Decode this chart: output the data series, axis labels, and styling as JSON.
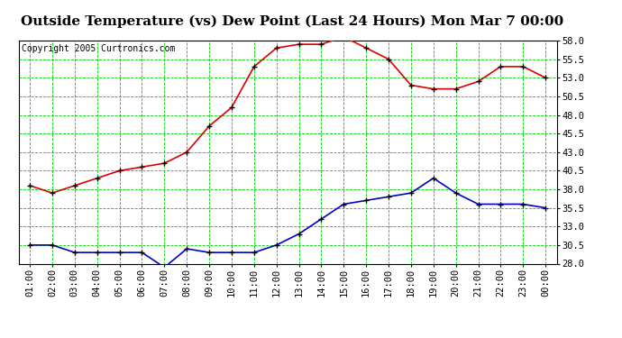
{
  "title": "Outside Temperature (vs) Dew Point (Last 24 Hours) Mon Mar 7 00:00",
  "copyright": "Copyright 2005 Curtronics.com",
  "x_labels": [
    "01:00",
    "02:00",
    "03:00",
    "04:00",
    "05:00",
    "06:00",
    "07:00",
    "08:00",
    "09:00",
    "10:00",
    "11:00",
    "12:00",
    "13:00",
    "14:00",
    "15:00",
    "16:00",
    "17:00",
    "18:00",
    "19:00",
    "20:00",
    "21:00",
    "22:00",
    "23:00",
    "00:00"
  ],
  "temp_data": [
    38.5,
    37.5,
    38.5,
    39.5,
    40.5,
    41.0,
    41.5,
    43.0,
    46.5,
    49.0,
    54.5,
    57.0,
    57.5,
    57.5,
    58.5,
    57.0,
    55.5,
    52.0,
    51.5,
    51.5,
    52.5,
    54.5,
    54.5,
    53.0
  ],
  "dew_data": [
    30.5,
    30.5,
    29.5,
    29.5,
    29.5,
    29.5,
    27.5,
    30.0,
    29.5,
    29.5,
    29.5,
    30.5,
    32.0,
    34.0,
    36.0,
    36.5,
    37.0,
    37.5,
    39.5,
    37.5,
    36.0,
    36.0,
    36.0,
    35.5
  ],
  "ylim": [
    28.0,
    58.0
  ],
  "yticks": [
    28.0,
    30.5,
    33.0,
    35.5,
    38.0,
    40.5,
    43.0,
    45.5,
    48.0,
    50.5,
    53.0,
    55.5,
    58.0
  ],
  "bg_color": "#ffffff",
  "plot_bg": "#ffffff",
  "grid_color": "#00cc00",
  "temp_color": "#dd0000",
  "dew_color": "#0000cc",
  "marker_color": "#000000",
  "title_fontsize": 11,
  "tick_fontsize": 7.5,
  "copyright_fontsize": 7
}
